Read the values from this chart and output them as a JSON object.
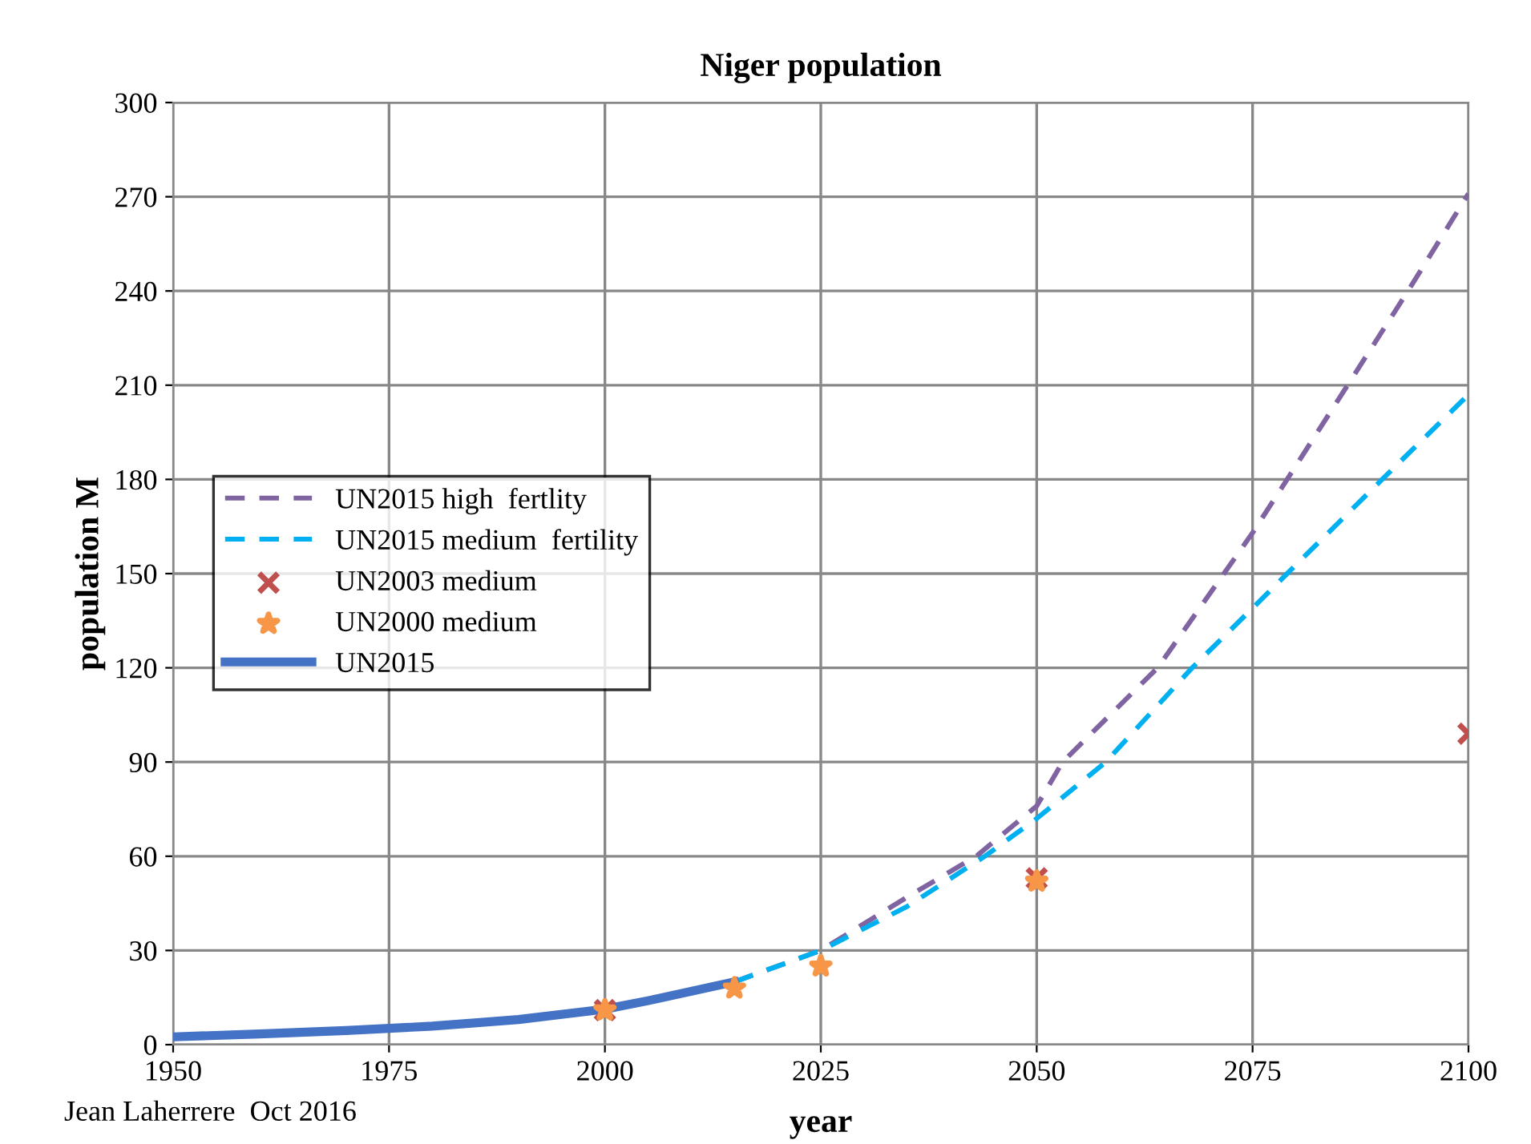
{
  "chart_data": {
    "type": "line",
    "title": "Niger population",
    "xlabel": "year",
    "ylabel": "population M",
    "xlim": [
      1950,
      2100
    ],
    "xticks": [
      1950,
      1975,
      2000,
      2025,
      2050,
      2075,
      2100
    ],
    "ylim": [
      0,
      300
    ],
    "yticks": [
      0,
      30,
      60,
      90,
      120,
      150,
      180,
      210,
      240,
      270,
      300
    ],
    "grid": true,
    "legend": "center left",
    "annotations": [
      "Jean Laherrere  Oct 2016"
    ],
    "series": [
      {
        "name": "UN2015 high  fertlity",
        "color": "#8064a2",
        "line_style": "dashed",
        "marker": "none",
        "x": [
          2015,
          2025,
          2035,
          2043,
          2050,
          2053,
          2064,
          2075,
          2079,
          2086,
          2093,
          2100
        ],
        "values": [
          20,
          30,
          47,
          60,
          76,
          90,
          120,
          163,
          180,
          210,
          240,
          271
        ]
      },
      {
        "name": "UN2015 medium  fertility",
        "color": "#00b0f0",
        "line_style": "dashed",
        "marker": "none",
        "x": [
          2015,
          2025,
          2035,
          2044,
          2050,
          2058,
          2068,
          2075,
          2079,
          2090,
          2100
        ],
        "values": [
          20,
          30,
          44,
          60,
          72,
          90,
          120,
          139,
          150,
          180,
          207
        ]
      },
      {
        "name": "UN2003 medium",
        "type": "scatter",
        "color": "#c0504d",
        "marker": "cross",
        "x": [
          2000,
          2050,
          2100
        ],
        "values": [
          11,
          53,
          99
        ]
      },
      {
        "name": "UN2000 medium",
        "type": "scatter",
        "color": "#f79646",
        "marker": "star",
        "x": [
          2000,
          2015,
          2025,
          2050
        ],
        "values": [
          11,
          18,
          25,
          52
        ]
      },
      {
        "name": "UN2015",
        "color": "#4472c4",
        "line_style": "solid",
        "marker": "none",
        "x": [
          1950,
          1960,
          1970,
          1980,
          1990,
          2000,
          2005,
          2010,
          2015
        ],
        "values": [
          2.5,
          3.4,
          4.5,
          5.9,
          8,
          11.3,
          14,
          17,
          20
        ]
      }
    ]
  }
}
